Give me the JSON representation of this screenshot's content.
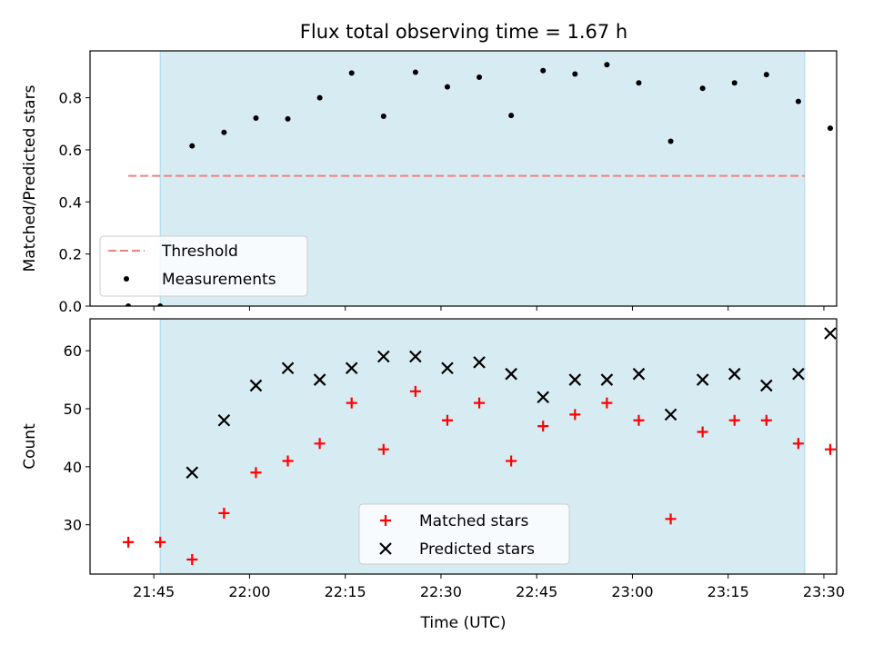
{
  "title": "Flux total observing time = 1.67 h",
  "colors": {
    "shade": "#add8e6",
    "threshold": "#f08080",
    "measurement": "#000000",
    "matched": "#ff0000",
    "predicted": "#000000"
  },
  "chart_data": [
    {
      "type": "scatter",
      "panel": "top",
      "xlabel": "",
      "ylabel": "Matched/Predicted stars",
      "xlim": [
        "21:35",
        "23:32"
      ],
      "ylim": [
        0,
        0.98
      ],
      "yticks": [
        0.0,
        0.2,
        0.4,
        0.6,
        0.8
      ],
      "ytick_labels": [
        "0.0",
        "0.2",
        "0.4",
        "0.6",
        "0.8"
      ],
      "shaded_span": [
        "21:46",
        "23:27"
      ],
      "threshold": {
        "name": "Threshold",
        "y": 0.5,
        "x_range": [
          "21:41",
          "23:27"
        ]
      },
      "legend_position": "lower left",
      "series": [
        {
          "name": "Measurements",
          "marker": "dot",
          "x": [
            "21:41",
            "21:46",
            "21:51",
            "21:56",
            "22:01",
            "22:06",
            "22:11",
            "22:16",
            "22:21",
            "22:26",
            "22:31",
            "22:36",
            "22:41",
            "22:46",
            "22:51",
            "22:56",
            "23:01",
            "23:06",
            "23:11",
            "23:16",
            "23:21",
            "23:26",
            "23:31"
          ],
          "y": [
            0.0,
            0.0,
            0.615,
            0.667,
            0.722,
            0.719,
            0.8,
            0.895,
            0.729,
            0.898,
            0.842,
            0.879,
            0.732,
            0.904,
            0.891,
            0.927,
            0.857,
            0.633,
            0.836,
            0.857,
            0.889,
            0.786,
            0.683
          ]
        }
      ]
    },
    {
      "type": "scatter",
      "panel": "bottom",
      "xlabel": "Time (UTC)",
      "ylabel": "Count",
      "xlim": [
        "21:35",
        "23:32"
      ],
      "ylim": [
        21.5,
        65.5
      ],
      "yticks": [
        30,
        40,
        50,
        60
      ],
      "ytick_labels": [
        "30",
        "40",
        "50",
        "60"
      ],
      "xticks": [
        "21:45",
        "22:00",
        "22:15",
        "22:30",
        "22:45",
        "23:00",
        "23:15",
        "23:30"
      ],
      "xtick_labels": [
        "21:45",
        "22:00",
        "22:15",
        "22:30",
        "22:45",
        "23:00",
        "23:15",
        "23:30"
      ],
      "shaded_span": [
        "21:46",
        "23:27"
      ],
      "legend_position": "lower center",
      "series": [
        {
          "name": "Matched stars",
          "marker": "plus",
          "x": [
            "21:41",
            "21:46",
            "21:51",
            "21:56",
            "22:01",
            "22:06",
            "22:11",
            "22:16",
            "22:21",
            "22:26",
            "22:31",
            "22:36",
            "22:41",
            "22:46",
            "22:51",
            "22:56",
            "23:01",
            "23:06",
            "23:11",
            "23:16",
            "23:21",
            "23:26",
            "23:31"
          ],
          "y": [
            27,
            27,
            24,
            32,
            39,
            41,
            44,
            51,
            43,
            53,
            48,
            51,
            41,
            47,
            49,
            51,
            48,
            31,
            46,
            48,
            48,
            44,
            43
          ]
        },
        {
          "name": "Predicted stars",
          "marker": "x",
          "x": [
            "21:51",
            "21:56",
            "22:01",
            "22:06",
            "22:11",
            "22:16",
            "22:21",
            "22:26",
            "22:31",
            "22:36",
            "22:41",
            "22:46",
            "22:51",
            "22:56",
            "23:01",
            "23:06",
            "23:11",
            "23:16",
            "23:21",
            "23:26",
            "23:31"
          ],
          "y": [
            39,
            48,
            54,
            57,
            55,
            57,
            59,
            59,
            57,
            58,
            56,
            52,
            55,
            55,
            56,
            49,
            55,
            56,
            54,
            56,
            63
          ]
        }
      ]
    }
  ]
}
